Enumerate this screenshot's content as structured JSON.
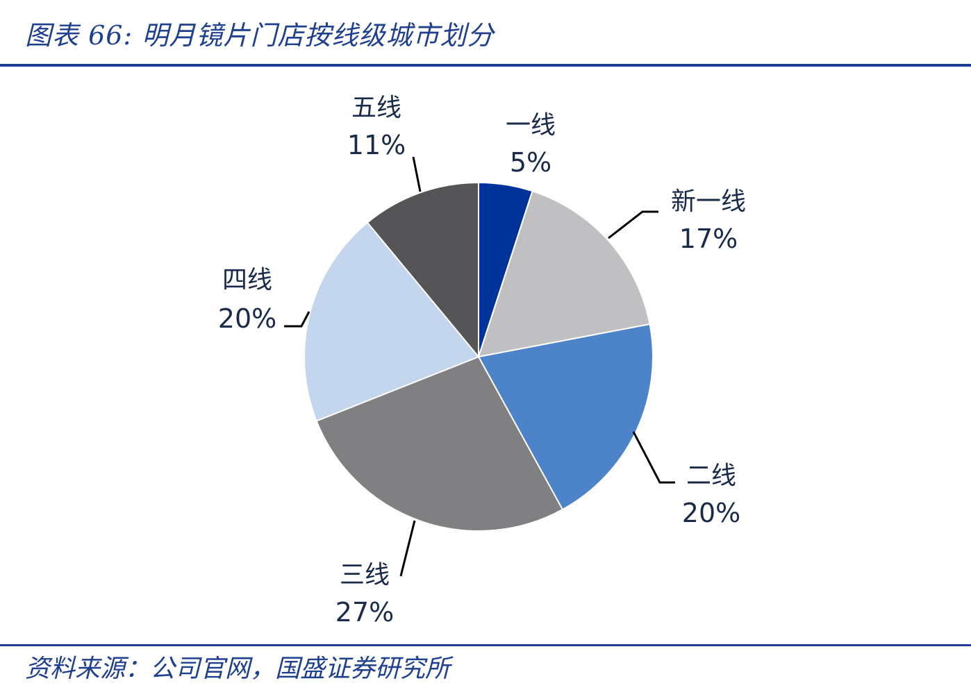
{
  "header": {
    "title": "图表 66:  明月镜片门店按线级城市划分"
  },
  "footer": {
    "source": "资料来源：公司官网，国盛证券研究所"
  },
  "chart_data": {
    "type": "pie",
    "title": "图表 66:  明月镜片门店按线级城市划分",
    "start_angle": "12 o'clock",
    "direction": "clockwise",
    "slices": [
      {
        "label": "一线",
        "value": 5,
        "pct_label": "5%",
        "color": "#003399"
      },
      {
        "label": "新一线",
        "value": 17,
        "pct_label": "17%",
        "color": "#c0c0c2"
      },
      {
        "label": "二线",
        "value": 20,
        "pct_label": "20%",
        "color": "#4d83c9"
      },
      {
        "label": "三线",
        "value": 27,
        "pct_label": "27%",
        "color": "#808083"
      },
      {
        "label": "四线",
        "value": 20,
        "pct_label": "20%",
        "color": "#c4d6ee"
      },
      {
        "label": "五线",
        "value": 11,
        "pct_label": "11%",
        "color": "#555557"
      }
    ]
  }
}
